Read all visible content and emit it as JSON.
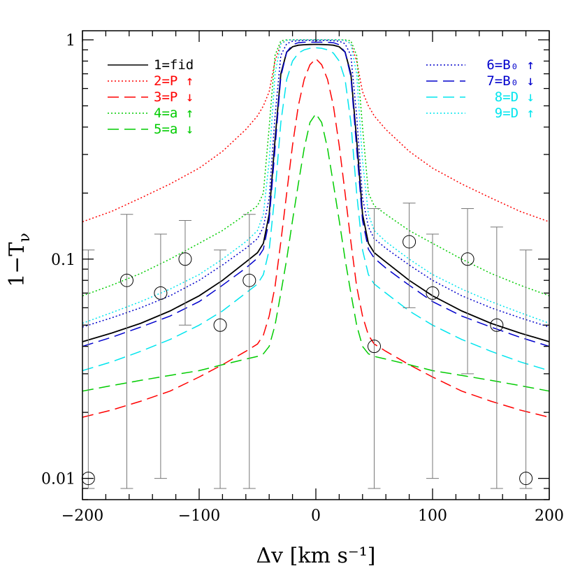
{
  "chart_data": {
    "type": "line",
    "xlabel": "Δv [km s⁻¹]",
    "ylabel": "1−T",
    "ylabel_sub": "ν",
    "xlim": [
      -200,
      200
    ],
    "ylim": [
      0.008,
      1.1
    ],
    "yscale": "log",
    "grid": false,
    "x_ticks": [
      -200,
      -100,
      0,
      100,
      200
    ],
    "x_tick_labels": [
      "−200",
      "−100",
      "0",
      "100",
      "200"
    ],
    "y_ticks": [
      0.01,
      0.1,
      1
    ],
    "y_tick_labels": [
      "0.01",
      "0.1",
      "1"
    ],
    "x": [
      -200,
      -175,
      -150,
      -125,
      -100,
      -80,
      -60,
      -50,
      -45,
      -40,
      -35,
      -30,
      -25,
      -20,
      -15,
      -10,
      -5,
      0,
      5,
      10,
      15,
      20,
      25,
      30,
      35,
      40,
      45,
      50,
      60,
      80,
      100,
      125,
      150,
      175,
      200
    ],
    "series": [
      {
        "name": "1=fid",
        "color": "#000000",
        "dash": "solid",
        "values": [
          0.042,
          0.046,
          0.051,
          0.058,
          0.068,
          0.08,
          0.097,
          0.107,
          0.118,
          0.16,
          0.35,
          0.7,
          0.88,
          0.93,
          0.945,
          0.95,
          0.952,
          0.953,
          0.952,
          0.95,
          0.945,
          0.93,
          0.88,
          0.7,
          0.35,
          0.16,
          0.118,
          0.107,
          0.097,
          0.08,
          0.068,
          0.058,
          0.051,
          0.046,
          0.042
        ]
      },
      {
        "name": "2=P ↑",
        "color": "#ff0000",
        "dash": "dotted",
        "values": [
          0.148,
          0.165,
          0.19,
          0.22,
          0.26,
          0.31,
          0.39,
          0.45,
          0.5,
          0.58,
          0.8,
          0.96,
          0.995,
          0.999,
          1.0,
          1.0,
          1.0,
          1.0,
          1.0,
          1.0,
          1.0,
          0.999,
          0.995,
          0.96,
          0.8,
          0.58,
          0.5,
          0.45,
          0.39,
          0.31,
          0.26,
          0.22,
          0.19,
          0.165,
          0.148
        ]
      },
      {
        "name": "3=P ↓",
        "color": "#ff0000",
        "dash": "longdash",
        "values": [
          0.019,
          0.0205,
          0.0225,
          0.025,
          0.029,
          0.033,
          0.038,
          0.041,
          0.045,
          0.055,
          0.075,
          0.12,
          0.2,
          0.33,
          0.5,
          0.66,
          0.77,
          0.82,
          0.77,
          0.66,
          0.5,
          0.33,
          0.2,
          0.12,
          0.075,
          0.055,
          0.045,
          0.041,
          0.038,
          0.033,
          0.029,
          0.025,
          0.0225,
          0.0205,
          0.019
        ]
      },
      {
        "name": "4=a ↑",
        "color": "#00cc00",
        "dash": "dotted",
        "values": [
          0.068,
          0.076,
          0.086,
          0.1,
          0.118,
          0.135,
          0.16,
          0.175,
          0.2,
          0.4,
          0.85,
          0.99,
          1.0,
          1.0,
          1.0,
          1.0,
          1.0,
          1.0,
          1.0,
          1.0,
          1.0,
          1.0,
          1.0,
          0.99,
          0.85,
          0.4,
          0.2,
          0.175,
          0.16,
          0.135,
          0.118,
          0.1,
          0.086,
          0.076,
          0.068
        ]
      },
      {
        "name": "5=a ↓",
        "color": "#00cc00",
        "dash": "longdash",
        "values": [
          0.025,
          0.0265,
          0.028,
          0.0295,
          0.031,
          0.033,
          0.035,
          0.036,
          0.037,
          0.04,
          0.05,
          0.07,
          0.1,
          0.15,
          0.22,
          0.32,
          0.42,
          0.46,
          0.42,
          0.32,
          0.22,
          0.15,
          0.1,
          0.07,
          0.05,
          0.04,
          0.037,
          0.036,
          0.035,
          0.033,
          0.031,
          0.0295,
          0.028,
          0.0265,
          0.025
        ]
      },
      {
        "name": "6=B₀ ↑",
        "color": "#0000cc",
        "dash": "dotted",
        "values": [
          0.049,
          0.054,
          0.06,
          0.068,
          0.08,
          0.094,
          0.112,
          0.124,
          0.14,
          0.19,
          0.45,
          0.85,
          0.96,
          0.985,
          0.99,
          0.995,
          0.995,
          0.995,
          0.995,
          0.995,
          0.99,
          0.985,
          0.96,
          0.85,
          0.45,
          0.19,
          0.14,
          0.124,
          0.112,
          0.094,
          0.08,
          0.068,
          0.06,
          0.054,
          0.049
        ]
      },
      {
        "name": "7=B₀ ↓",
        "color": "#0000cc",
        "dash": "longdash",
        "values": [
          0.04,
          0.044,
          0.049,
          0.055,
          0.064,
          0.076,
          0.091,
          0.101,
          0.111,
          0.15,
          0.32,
          0.68,
          0.88,
          0.95,
          0.97,
          0.975,
          0.975,
          0.975,
          0.975,
          0.975,
          0.97,
          0.95,
          0.88,
          0.68,
          0.32,
          0.15,
          0.111,
          0.101,
          0.091,
          0.076,
          0.064,
          0.055,
          0.049,
          0.044,
          0.04
        ]
      },
      {
        "name": "8=D ↓",
        "color": "#00e5ee",
        "dash": "longdash",
        "values": [
          0.031,
          0.034,
          0.038,
          0.043,
          0.05,
          0.058,
          0.07,
          0.077,
          0.085,
          0.11,
          0.2,
          0.42,
          0.66,
          0.8,
          0.87,
          0.9,
          0.915,
          0.92,
          0.915,
          0.9,
          0.87,
          0.8,
          0.66,
          0.42,
          0.2,
          0.11,
          0.085,
          0.077,
          0.07,
          0.058,
          0.05,
          0.043,
          0.038,
          0.034,
          0.031
        ]
      },
      {
        "name": "9=D ↑",
        "color": "#00e5ee",
        "dash": "dotted",
        "values": [
          0.051,
          0.057,
          0.064,
          0.073,
          0.085,
          0.1,
          0.12,
          0.135,
          0.16,
          0.28,
          0.7,
          0.96,
          0.995,
          1.0,
          1.0,
          1.0,
          1.0,
          1.0,
          1.0,
          1.0,
          1.0,
          1.0,
          0.995,
          0.96,
          0.7,
          0.28,
          0.16,
          0.135,
          0.12,
          0.1,
          0.085,
          0.073,
          0.064,
          0.057,
          0.051
        ]
      }
    ],
    "data_points": [
      {
        "x": -195,
        "y": 0.01,
        "lo": 0.009,
        "hi": 0.11
      },
      {
        "x": -162,
        "y": 0.08,
        "lo": 0.009,
        "hi": 0.16
      },
      {
        "x": -133,
        "y": 0.07,
        "lo": 0.01,
        "hi": 0.13
      },
      {
        "x": -112,
        "y": 0.1,
        "lo": 0.05,
        "hi": 0.15
      },
      {
        "x": -82,
        "y": 0.05,
        "lo": 0.009,
        "hi": 0.11
      },
      {
        "x": -57,
        "y": 0.08,
        "lo": 0.009,
        "hi": 0.16
      },
      {
        "x": 50,
        "y": 0.04,
        "lo": 0.009,
        "hi": 0.17
      },
      {
        "x": 80,
        "y": 0.12,
        "lo": 0.06,
        "hi": 0.18
      },
      {
        "x": 100,
        "y": 0.07,
        "lo": 0.01,
        "hi": 0.13
      },
      {
        "x": 130,
        "y": 0.1,
        "lo": 0.03,
        "hi": 0.17
      },
      {
        "x": 155,
        "y": 0.05,
        "lo": 0.009,
        "hi": 0.14
      },
      {
        "x": 180,
        "y": 0.01,
        "lo": 0.009,
        "hi": 0.11
      }
    ],
    "legend_left": [
      "1=fid",
      "2=P ↑",
      "3=P ↓",
      "4=a ↑",
      "5=a ↓"
    ],
    "legend_right": [
      "6=B₀ ↑",
      "7=B₀ ↓",
      "8=D ↓",
      "9=D ↑"
    ]
  }
}
